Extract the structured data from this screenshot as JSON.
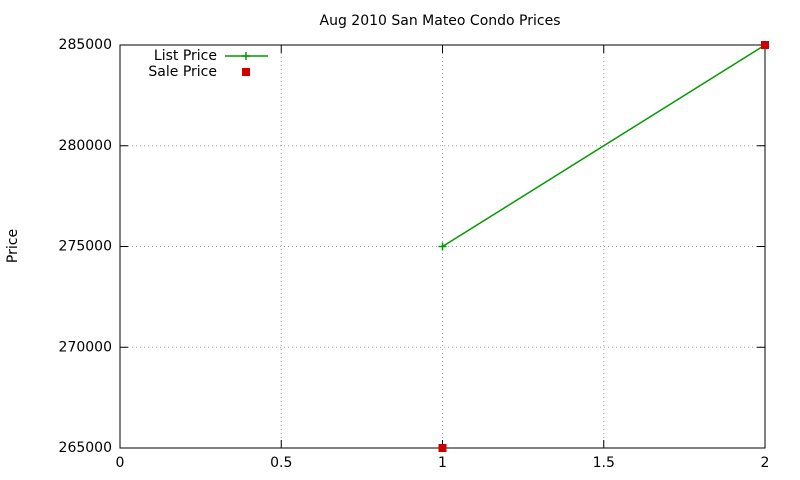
{
  "chart_data": {
    "type": "line",
    "title": "Aug 2010 San Mateo Condo Prices",
    "y_label": "Price",
    "x": [
      1,
      2
    ],
    "series": [
      {
        "name": "List Price",
        "color": "#009900",
        "style": "linespoints",
        "marker": "plus",
        "values": [
          275000,
          285000
        ]
      },
      {
        "name": "Sale Price",
        "color": "#cc0000",
        "style": "points",
        "marker": "square",
        "values": [
          265000,
          285000
        ]
      }
    ],
    "xlim": [
      0,
      2
    ],
    "xticks": [
      0,
      0.5,
      1,
      1.5,
      2
    ],
    "ylim": [
      265000,
      285000
    ],
    "yticks": [
      265000,
      270000,
      275000,
      280000,
      285000
    ],
    "grid": true,
    "legend": "top-left"
  }
}
